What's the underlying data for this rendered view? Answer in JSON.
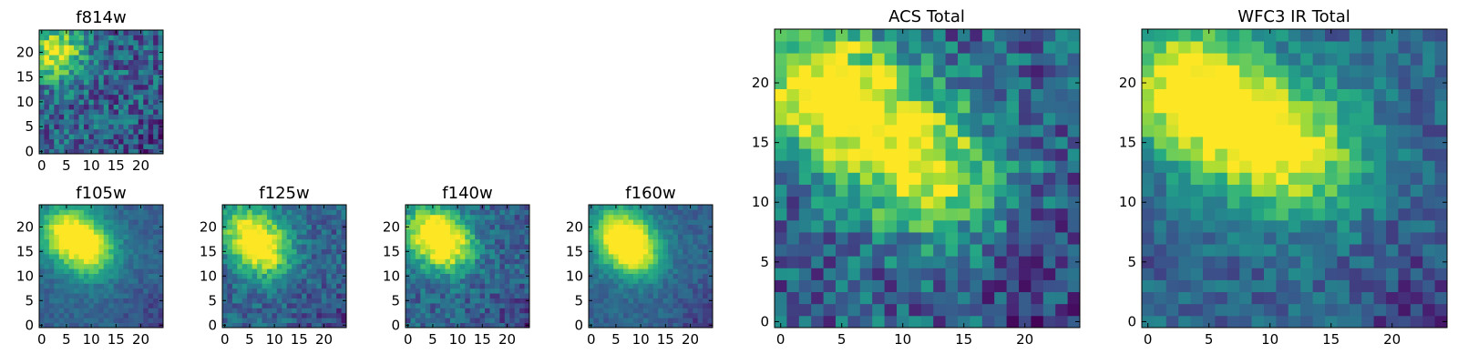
{
  "colormap": "viridis",
  "chart_data": [
    {
      "type": "heatmap",
      "title": "f814w",
      "xticks": [
        0,
        5,
        10,
        15,
        20
      ],
      "yticks": [
        0,
        5,
        10,
        15,
        20
      ],
      "xlim": [
        0,
        24
      ],
      "ylim": [
        0,
        24
      ],
      "grid_size": 25,
      "peak_blobs": [
        {
          "x": 3,
          "y": 20,
          "level": 0.95
        }
      ],
      "noise": "high",
      "note_edges": "dark low values toward bottom-right"
    },
    {
      "type": "heatmap",
      "title": "f105w",
      "xticks": [
        0,
        5,
        10,
        15,
        20
      ],
      "yticks": [
        0,
        5,
        10,
        15,
        20
      ],
      "xlim": [
        0,
        24
      ],
      "ylim": [
        0,
        24
      ],
      "grid_size": 25,
      "peak_blobs": [
        {
          "x": 5,
          "y": 19,
          "level": 1.0
        },
        {
          "x": 10,
          "y": 15,
          "level": 0.9
        }
      ],
      "noise": "low"
    },
    {
      "type": "heatmap",
      "title": "f125w",
      "xticks": [
        0,
        5,
        10,
        15,
        20
      ],
      "yticks": [
        0,
        5,
        10,
        15,
        20
      ],
      "xlim": [
        0,
        24
      ],
      "ylim": [
        0,
        24
      ],
      "grid_size": 25,
      "peak_blobs": [
        {
          "x": 8,
          "y": 15,
          "level": 1.0
        },
        {
          "x": 4,
          "y": 20,
          "level": 0.85
        }
      ],
      "noise": "medium"
    },
    {
      "type": "heatmap",
      "title": "f140w",
      "xticks": [
        0,
        5,
        10,
        15,
        20
      ],
      "yticks": [
        0,
        5,
        10,
        15,
        20
      ],
      "xlim": [
        0,
        24
      ],
      "ylim": [
        0,
        24
      ],
      "grid_size": 25,
      "peak_blobs": [
        {
          "x": 8,
          "y": 16,
          "level": 1.0
        },
        {
          "x": 4,
          "y": 20,
          "level": 0.85
        }
      ],
      "noise": "medium"
    },
    {
      "type": "heatmap",
      "title": "f160w",
      "xticks": [
        0,
        5,
        10,
        15,
        20
      ],
      "yticks": [
        0,
        5,
        10,
        15,
        20
      ],
      "xlim": [
        0,
        24
      ],
      "ylim": [
        0,
        24
      ],
      "grid_size": 25,
      "peak_blobs": [
        {
          "x": 9,
          "y": 15,
          "level": 1.0
        },
        {
          "x": 5,
          "y": 19,
          "level": 0.9
        }
      ],
      "noise": "low"
    },
    {
      "type": "heatmap",
      "title": "ACS Total",
      "xticks": [
        0,
        5,
        10,
        15,
        20
      ],
      "yticks": [
        0,
        5,
        10,
        15,
        20
      ],
      "xlim": [
        0,
        24
      ],
      "ylim": [
        0,
        24
      ],
      "grid_size": 25,
      "peak_blobs": [
        {
          "x": 3,
          "y": 20,
          "level": 1.0
        },
        {
          "x": 8,
          "y": 16,
          "level": 0.85
        },
        {
          "x": 13,
          "y": 12,
          "level": 0.8
        }
      ],
      "noise": "high"
    },
    {
      "type": "heatmap",
      "title": "WFC3 IR Total",
      "xticks": [
        0,
        5,
        10,
        15,
        20
      ],
      "yticks": [
        0,
        5,
        10,
        15,
        20
      ],
      "xlim": [
        0,
        24
      ],
      "ylim": [
        0,
        24
      ],
      "grid_size": 25,
      "peak_blobs": [
        {
          "x": 3,
          "y": 20,
          "level": 1.0
        },
        {
          "x": 8,
          "y": 16,
          "level": 0.85
        },
        {
          "x": 13,
          "y": 14,
          "level": 0.8
        }
      ],
      "noise": "medium"
    }
  ]
}
